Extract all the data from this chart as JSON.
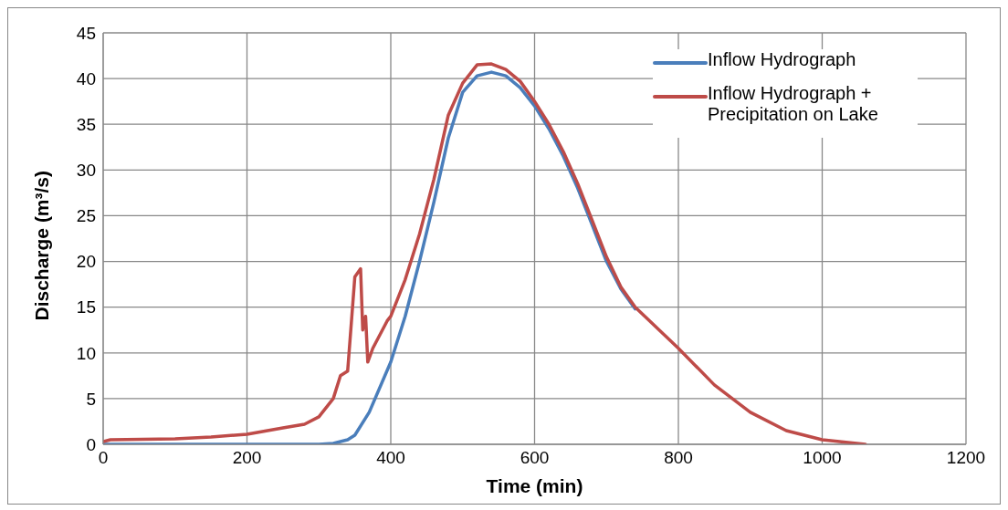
{
  "chart_data": {
    "type": "line",
    "xlabel": "Time (min)",
    "ylabel": "Discharge (m³/s)",
    "xlim": [
      0,
      1200
    ],
    "xticks": [
      0,
      200,
      400,
      600,
      800,
      1000,
      1200
    ],
    "ylim": [
      0,
      45
    ],
    "yticks": [
      0,
      5,
      10,
      15,
      20,
      25,
      30,
      35,
      40,
      45
    ],
    "grid": true,
    "legend": "top right",
    "marker": "none",
    "line_style": "solid",
    "series": [
      {
        "name": "Inflow Hydrograph",
        "color": "#4a7ebb",
        "x": [
          0,
          100,
          200,
          300,
          320,
          340,
          350,
          370,
          400,
          420,
          440,
          460,
          480,
          500,
          520,
          540,
          560,
          580,
          600,
          620,
          640,
          660,
          680,
          700,
          720,
          740
        ],
        "values": [
          0,
          0,
          0,
          0,
          0.1,
          0.5,
          1,
          3.5,
          9,
          14,
          20,
          26.5,
          33.5,
          38.5,
          40.3,
          40.7,
          40.3,
          39,
          37,
          34.5,
          31.5,
          28,
          24,
          20,
          17,
          14.8
        ]
      },
      {
        "name": "Inflow Hydrograph + Precipitation on Lake",
        "color": "#be4b48",
        "x": [
          0,
          10,
          100,
          150,
          200,
          250,
          280,
          300,
          310,
          320,
          330,
          340,
          350,
          358,
          361,
          365,
          368,
          375,
          385,
          395,
          400,
          420,
          440,
          460,
          480,
          500,
          520,
          540,
          560,
          580,
          600,
          620,
          640,
          660,
          680,
          700,
          720,
          740,
          760,
          780,
          800,
          850,
          900,
          950,
          1000,
          1060
        ],
        "values": [
          0.3,
          0.5,
          0.6,
          0.8,
          1.1,
          1.8,
          2.2,
          3,
          4,
          5,
          7.5,
          8,
          18.3,
          19.2,
          12.5,
          14,
          9,
          10.5,
          12,
          13.5,
          14,
          18,
          23,
          29,
          36,
          39.5,
          41.5,
          41.6,
          41,
          39.7,
          37.5,
          35,
          32,
          28.5,
          24.5,
          20.5,
          17.2,
          15,
          13.5,
          12,
          10.5,
          6.5,
          3.5,
          1.5,
          0.5,
          0
        ]
      }
    ]
  }
}
